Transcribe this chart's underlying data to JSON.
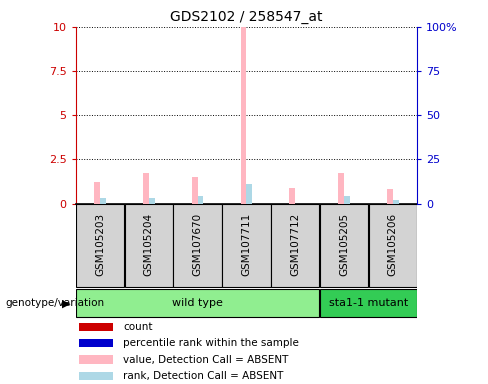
{
  "title": "GDS2102 / 258547_at",
  "samples": [
    "GSM105203",
    "GSM105204",
    "GSM107670",
    "GSM107711",
    "GSM107712",
    "GSM105205",
    "GSM105206"
  ],
  "groups": [
    {
      "label": "wild type",
      "indices": [
        0,
        1,
        2,
        3,
        4
      ],
      "color": "#90EE90"
    },
    {
      "label": "sta1-1 mutant",
      "indices": [
        5,
        6
      ],
      "color": "#33CC55"
    }
  ],
  "ylim_left": [
    0,
    10
  ],
  "ylim_right": [
    0,
    100
  ],
  "yticks_left": [
    0,
    2.5,
    5,
    7.5,
    10
  ],
  "yticks_right": [
    0,
    25,
    50,
    75,
    100
  ],
  "ytick_labels_left": [
    "0",
    "2.5",
    "5",
    "7.5",
    "10"
  ],
  "ytick_labels_right": [
    "0",
    "25",
    "50",
    "75",
    "100%"
  ],
  "pink_bars": [
    1.2,
    1.7,
    1.5,
    10.0,
    0.9,
    1.7,
    0.8
  ],
  "lightblue_bars": [
    3.0,
    3.0,
    4.0,
    11.0,
    0.0,
    4.0,
    2.0
  ],
  "red_bars": [
    0.0,
    0.0,
    0.0,
    0.0,
    0.0,
    0.0,
    0.0
  ],
  "blue_bars": [
    0.0,
    0.0,
    0.0,
    0.0,
    0.0,
    0.0,
    0.0
  ],
  "bar_width": 0.12,
  "colors": {
    "red": "#CC0000",
    "blue": "#0000CC",
    "pink": "#FFB6C1",
    "lightblue": "#ADD8E6",
    "axis_left": "#CC0000",
    "axis_right": "#0000CC",
    "sample_box": "#D3D3D3",
    "wild_type_box": "#90EE90",
    "mutant_box": "#33CC55"
  },
  "legend_items": [
    {
      "label": "count",
      "color": "#CC0000"
    },
    {
      "label": "percentile rank within the sample",
      "color": "#0000CC"
    },
    {
      "label": "value, Detection Call = ABSENT",
      "color": "#FFB6C1"
    },
    {
      "label": "rank, Detection Call = ABSENT",
      "color": "#ADD8E6"
    }
  ],
  "group_label": "genotype/variation"
}
